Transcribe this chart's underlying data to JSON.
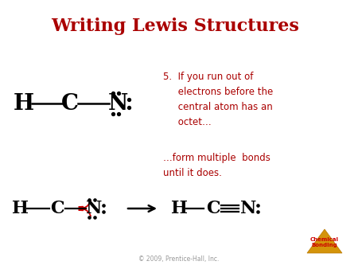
{
  "title": "Writing Lewis Structures",
  "title_color": "#aa0000",
  "title_fontsize": 16,
  "bg_color": "#ffffff",
  "text_color": "#aa0000",
  "black": "#000000",
  "red": "#cc0000",
  "point5_text": "5.  If you run out of\n     electrons before the\n     central atom has an\n     octet…",
  "form_text": "…form multiple  bonds\nuntil it does.",
  "copyright_text": "© 2009, Prentice-Hall, Inc.",
  "chem_bonding_text": "Chemical\nBonding",
  "triangle_color": "#d4940a"
}
